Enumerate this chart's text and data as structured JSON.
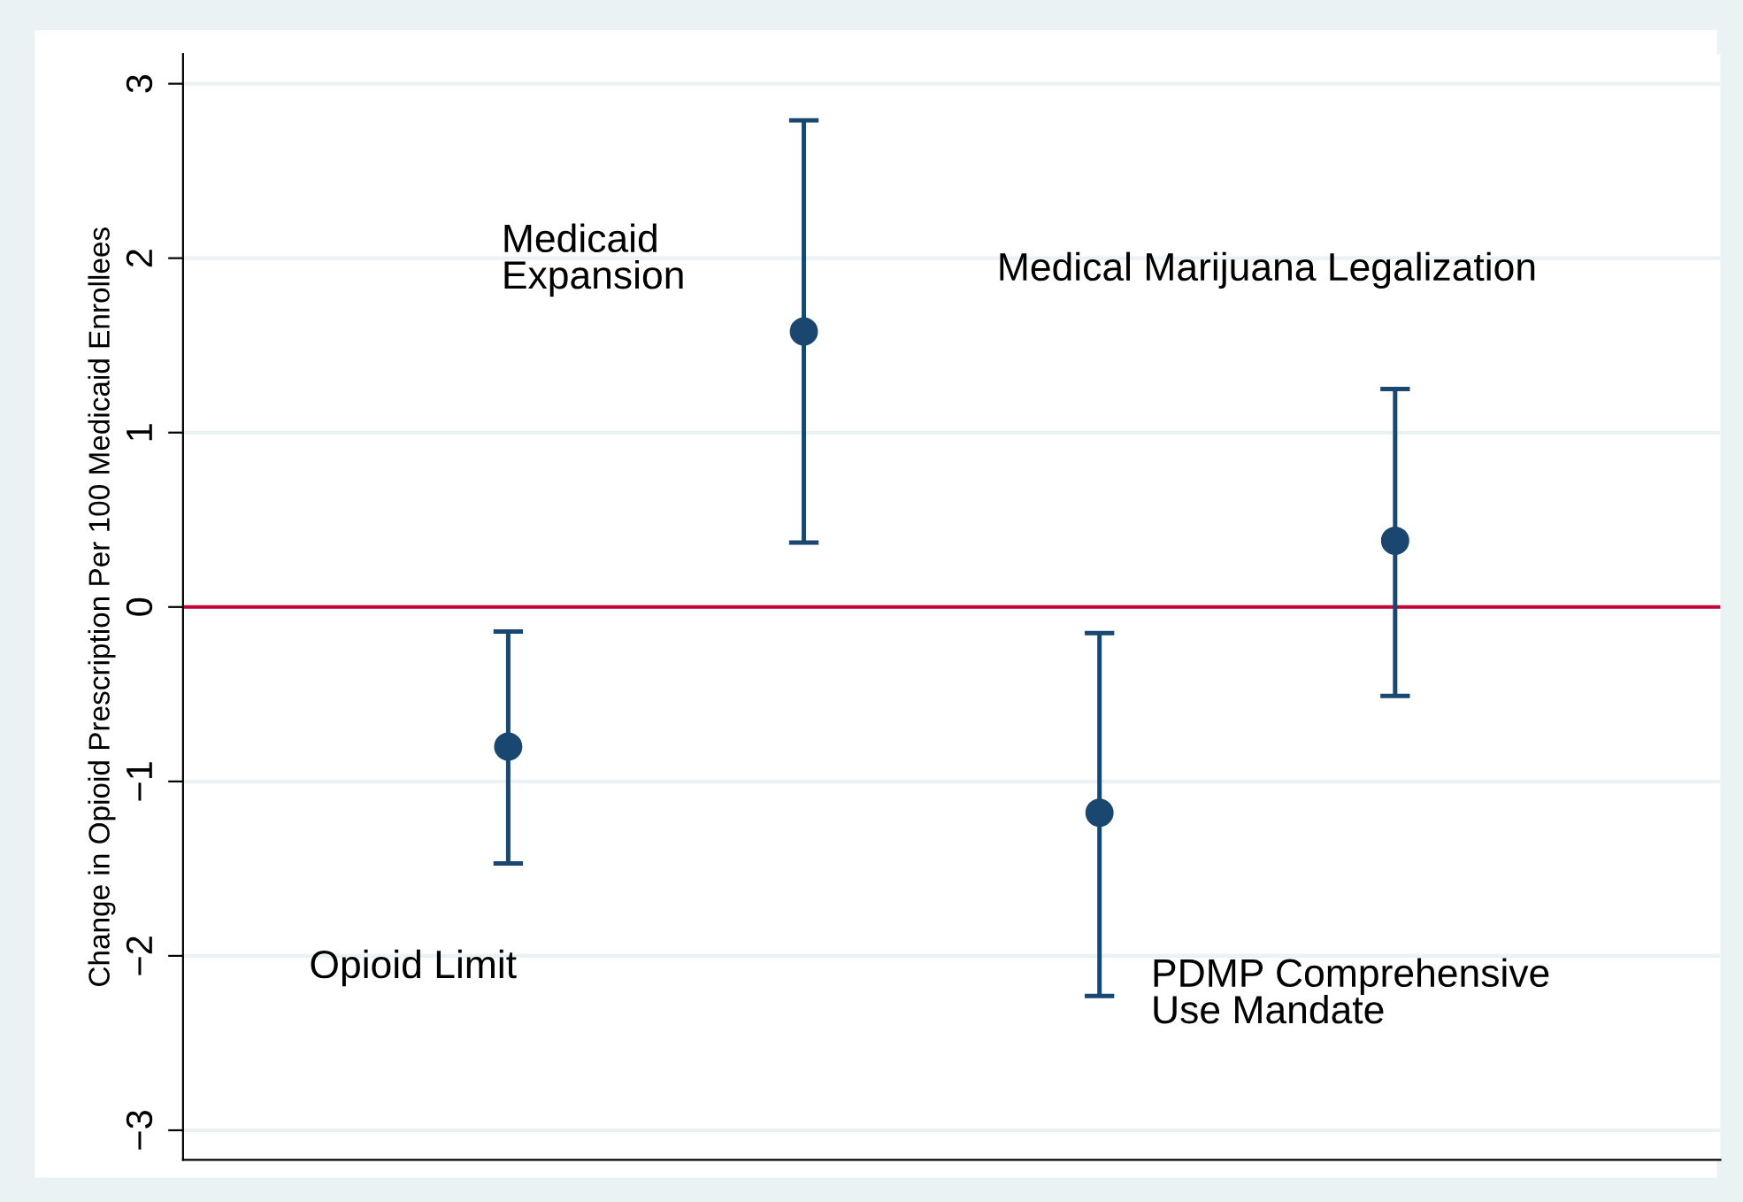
{
  "chart_data": {
    "type": "scatter",
    "ylabel": "Change in Opioid Prescription Per 100 Medicaid Enrollees",
    "categories": [
      null,
      null,
      null,
      null
    ],
    "values": [
      -0.8,
      1.58,
      -1.18,
      0.38
    ],
    "errors": [
      [
        -1.47,
        -0.14
      ],
      [
        0.37,
        2.79
      ],
      [
        -2.23,
        -0.15
      ],
      [
        -0.51,
        1.25
      ]
    ],
    "color": "#1a476f",
    "marker": "circle",
    "ylim": [
      -3.17,
      3.17
    ],
    "yticks": [
      -3,
      -2,
      -1,
      0,
      1,
      2,
      3
    ],
    "grid": "y",
    "legend": false,
    "ref_lines": [
      {
        "axis": "y",
        "value": 0,
        "color": "#c10534"
      }
    ],
    "annotations": [
      "Opioid Limit",
      "Medicaid\nExpansion",
      "PDMP Comprehensive\nUse Mandate",
      "Medical Marijuana Legalization"
    ]
  }
}
